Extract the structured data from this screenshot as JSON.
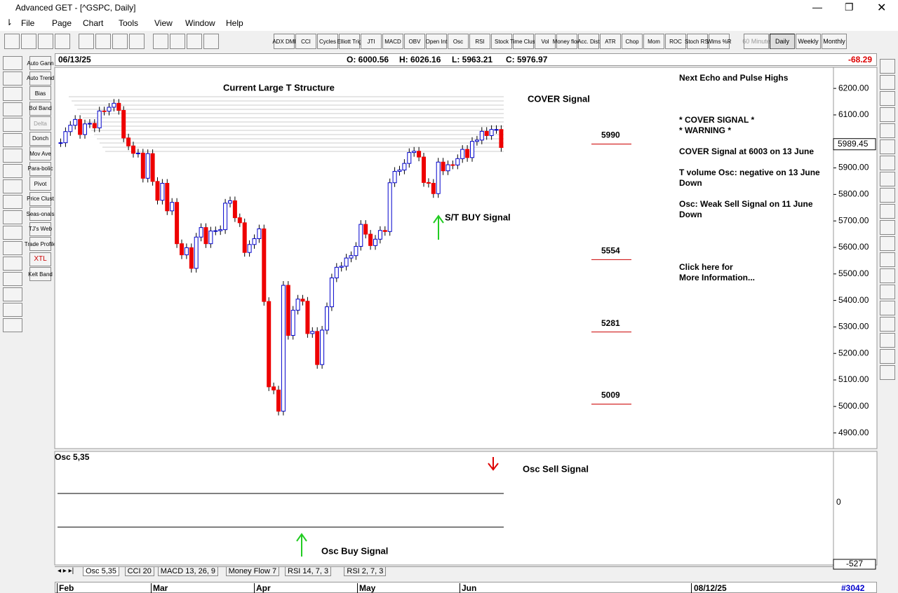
{
  "window": {
    "title": "Advanced GET - [^GSPC, Daily]"
  },
  "menu": [
    "File",
    "Page",
    "Chart",
    "Tools",
    "View",
    "Window",
    "Help"
  ],
  "toolbar": [
    "ADX DMI",
    "CCI",
    "Cycles",
    "Elliott Trig",
    "JTI",
    "MACD",
    "OBV",
    "Open Int",
    "Osc",
    "RSI",
    "Stock",
    "Time Clust",
    "Vol",
    "Money flow",
    "Acc. Dist",
    "ATR",
    "Chop",
    "Mom",
    "ROC",
    "Stoch RSI",
    "Wlms %R"
  ],
  "timeframes": [
    "60 Minute",
    "Daily",
    "Weekly",
    "Monthly"
  ],
  "studies": [
    "Auto Gann",
    "Auto Trend",
    "Bias",
    "Bol Band",
    "Delta",
    "Donch",
    "Mov Ave",
    "Para-bolic",
    "Pivot",
    "Price Clust",
    "Seas-onals",
    "TJ's Web",
    "Trade Profile",
    "XTL",
    "Kelt Band"
  ],
  "info": {
    "date": "06/13/25",
    "open": "O: 6000.56",
    "high": "H: 6026.16",
    "low": "L: 5963.21",
    "close": "C: 5976.97",
    "change": "-68.29"
  },
  "price_chart": {
    "closes": [
      5995,
      6037,
      6061,
      6083,
      6026,
      6066,
      6068,
      6051,
      6115,
      6114,
      6129,
      6144,
      6117,
      6013,
      5983,
      5955,
      5956,
      5861,
      5954,
      5849,
      5778,
      5842,
      5738,
      5770,
      5614,
      5572,
      5599,
      5521,
      5639,
      5675,
      5614,
      5662,
      5663,
      5667,
      5767,
      5776,
      5712,
      5693,
      5581,
      5611,
      5633,
      5670,
      5396,
      5074,
      5062,
      4982,
      5457,
      5268,
      5363,
      5405,
      5397,
      5275,
      5283,
      5158,
      5288,
      5376,
      5485,
      5525,
      5529,
      5560,
      5569,
      5604,
      5687,
      5650,
      5607,
      5631,
      5664,
      5660,
      5844,
      5887,
      5892,
      5917,
      5958,
      5963,
      5941,
      5845,
      5842,
      5803,
      5922,
      5889,
      5912,
      5911,
      5935,
      5970,
      5939,
      6000,
      6005,
      6038,
      6022,
      6045,
      6045,
      5977
    ],
    "ylim": [
      4870,
      6240
    ],
    "yticks": [
      {
        "value": 6200,
        "label": "6200.00"
      },
      {
        "value": 6100,
        "label": "6100.00"
      },
      {
        "value": 5900,
        "label": "5900.00"
      },
      {
        "value": 5800,
        "label": "5800.00"
      },
      {
        "value": 5700,
        "label": "5700.00"
      },
      {
        "value": 5600,
        "label": "5600.00"
      },
      {
        "value": 5500,
        "label": "5500.00"
      },
      {
        "value": 5400,
        "label": "5400.00"
      },
      {
        "value": 5300,
        "label": "5300.00"
      },
      {
        "value": 5200,
        "label": "5200.00"
      },
      {
        "value": 5100,
        "label": "5100.00"
      },
      {
        "value": 5000,
        "label": "5000.00"
      },
      {
        "value": 4900,
        "label": "4900.00"
      }
    ],
    "last_price": "5989.45",
    "levels": [
      5990,
      5554,
      5281,
      5009
    ],
    "annotations": {
      "structure": "Current Large T Structure",
      "cover": "COVER Signal",
      "buy": "S/T BUY Signal"
    },
    "notes": [
      "Next Echo and Pulse Highs",
      "* COVER SIGNAL *",
      "* WARNING *",
      "COVER Signal at 6003 on 13 June",
      "T volume Osc: negative on 13 June",
      "Down",
      "Osc: Weak Sell Signal on 11 June",
      "Down",
      "Click here for",
      "More Information..."
    ]
  },
  "osc_panel": {
    "title": "Osc 5,35",
    "sell": "Osc Sell Signal",
    "buy": "Osc Buy Signal",
    "zero": "0",
    "value": "-527"
  },
  "tabs": [
    "Osc 5,35",
    "CCI 20",
    "MACD 13, 26, 9",
    "Money Flow 7",
    "RSI 14, 7, 3",
    "RSI 2, 7, 3"
  ],
  "date_axis": {
    "months": [
      "Feb",
      "Mar",
      "Apr",
      "May",
      "Jun"
    ],
    "end_date": "08/12/25",
    "bar_count": "#3042"
  }
}
